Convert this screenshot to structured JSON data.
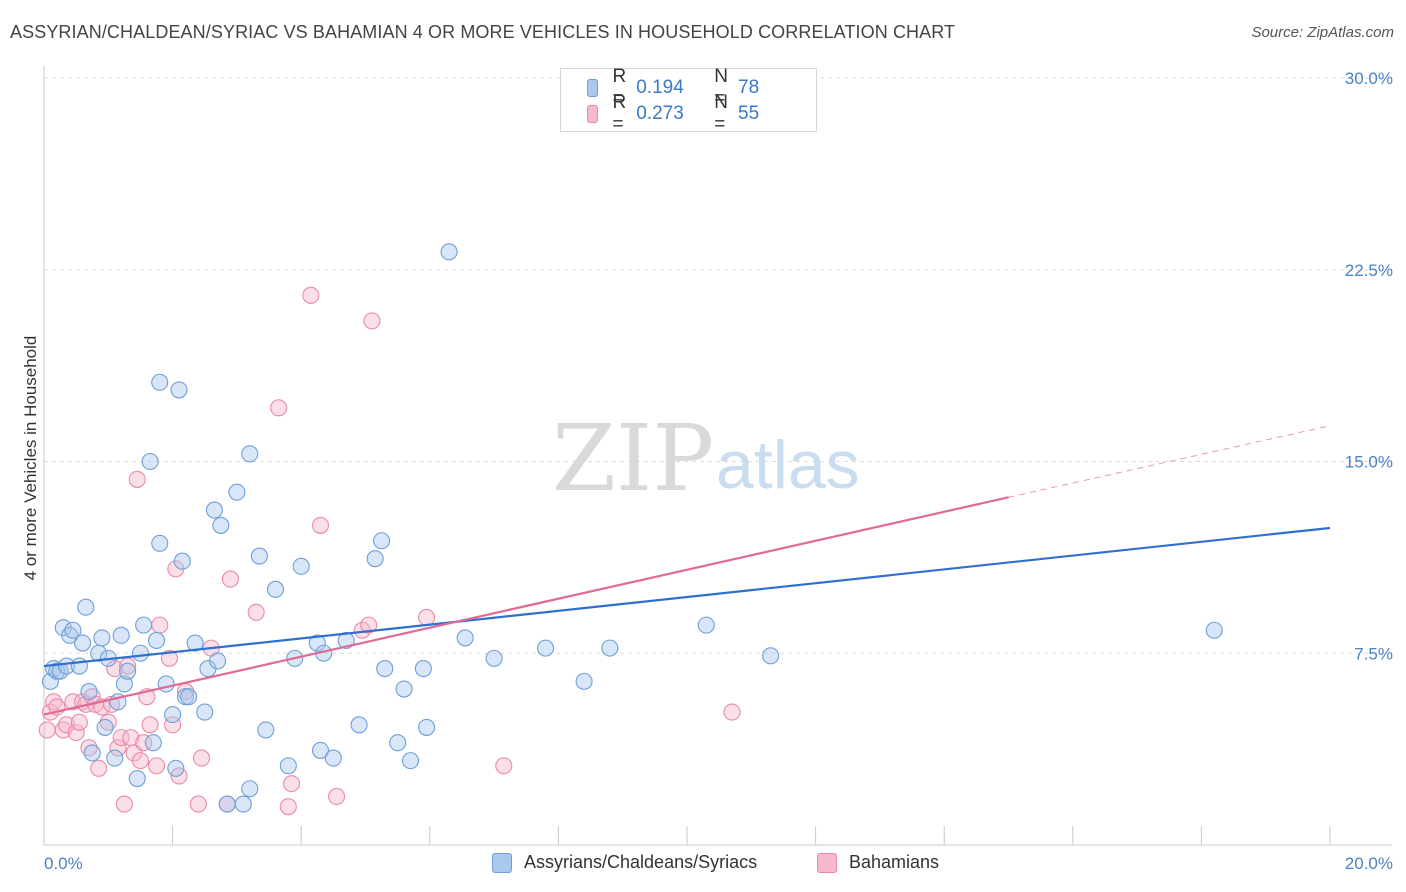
{
  "title": "ASSYRIAN/CHALDEAN/SYRIAC VS BAHAMIAN 4 OR MORE VEHICLES IN HOUSEHOLD CORRELATION CHART",
  "source": "Source: ZipAtlas.com",
  "watermark": {
    "zip": "ZIP",
    "atlas": "atlas"
  },
  "legend_top": [
    {
      "r_label": "R =",
      "r_value": "0.194",
      "n_label": "N =",
      "n_value": "78"
    },
    {
      "r_label": "R =",
      "r_value": "0.273",
      "n_label": "N =",
      "n_value": "55"
    }
  ],
  "legend_bottom": [
    {
      "label": "Assyrians/Chaldeans/Syriacs"
    },
    {
      "label": "Bahamians"
    }
  ],
  "chart_data": {
    "type": "scatter",
    "ylabel": "4 or more Vehicles in Household",
    "xlim": [
      0,
      20
    ],
    "ylim": [
      0,
      30
    ],
    "x_tick_labels": [
      "0.0%",
      "20.0%"
    ],
    "y_ticks": [
      7.5,
      15.0,
      22.5,
      30.0
    ],
    "y_tick_labels": [
      "7.5%",
      "15.0%",
      "22.5%",
      "30.0%"
    ],
    "grid": "horizontal dashed",
    "colors": {
      "blue_fill": "#a9c8ee",
      "blue_stroke": "#6f9fd8",
      "blue_line": "#2f6fce",
      "pink_fill": "#f6b8cb",
      "pink_stroke": "#e88aa6",
      "pink_line": "#e06a94"
    },
    "series": [
      {
        "name": "Assyrians/Chaldeans/Syriacs",
        "r": 0.194,
        "n": 78,
        "trend": {
          "x": [
            0,
            20
          ],
          "y": [
            7.0,
            12.4
          ]
        },
        "points": [
          [
            0.1,
            6.4
          ],
          [
            0.15,
            6.9
          ],
          [
            0.2,
            6.8
          ],
          [
            0.25,
            6.8
          ],
          [
            0.3,
            8.5
          ],
          [
            0.35,
            7.0
          ],
          [
            0.4,
            8.2
          ],
          [
            0.45,
            8.4
          ],
          [
            0.55,
            7.0
          ],
          [
            0.6,
            7.9
          ],
          [
            0.65,
            9.3
          ],
          [
            0.7,
            6.0
          ],
          [
            0.75,
            3.6
          ],
          [
            0.85,
            7.5
          ],
          [
            0.9,
            8.1
          ],
          [
            0.95,
            4.6
          ],
          [
            1.0,
            7.3
          ],
          [
            1.1,
            3.4
          ],
          [
            1.15,
            5.6
          ],
          [
            1.2,
            8.2
          ],
          [
            1.25,
            6.3
          ],
          [
            1.3,
            6.8
          ],
          [
            1.45,
            2.6
          ],
          [
            1.5,
            7.5
          ],
          [
            1.55,
            8.6
          ],
          [
            1.65,
            15.0
          ],
          [
            1.7,
            4.0
          ],
          [
            1.75,
            8.0
          ],
          [
            1.8,
            11.8
          ],
          [
            1.8,
            18.1
          ],
          [
            1.9,
            6.3
          ],
          [
            2.0,
            5.1
          ],
          [
            2.05,
            3.0
          ],
          [
            2.1,
            17.8
          ],
          [
            2.15,
            11.1
          ],
          [
            2.2,
            5.8
          ],
          [
            2.25,
            5.8
          ],
          [
            2.35,
            7.9
          ],
          [
            2.5,
            5.2
          ],
          [
            2.55,
            6.9
          ],
          [
            2.65,
            13.1
          ],
          [
            2.7,
            7.2
          ],
          [
            2.75,
            12.5
          ],
          [
            2.85,
            1.6
          ],
          [
            3.0,
            13.8
          ],
          [
            3.1,
            1.6
          ],
          [
            3.2,
            2.2
          ],
          [
            3.2,
            15.3
          ],
          [
            3.35,
            11.3
          ],
          [
            3.45,
            4.5
          ],
          [
            3.6,
            10.0
          ],
          [
            3.8,
            3.1
          ],
          [
            3.9,
            7.3
          ],
          [
            4.0,
            10.9
          ],
          [
            4.25,
            7.9
          ],
          [
            4.3,
            3.7
          ],
          [
            4.35,
            7.5
          ],
          [
            4.5,
            3.4
          ],
          [
            4.7,
            8.0
          ],
          [
            4.9,
            4.7
          ],
          [
            5.15,
            11.2
          ],
          [
            5.25,
            11.9
          ],
          [
            5.3,
            6.9
          ],
          [
            5.5,
            4.0
          ],
          [
            5.6,
            6.1
          ],
          [
            5.7,
            3.3
          ],
          [
            5.9,
            6.9
          ],
          [
            5.95,
            4.6
          ],
          [
            6.3,
            23.2
          ],
          [
            6.55,
            8.1
          ],
          [
            7.0,
            7.3
          ],
          [
            7.8,
            7.7
          ],
          [
            8.4,
            6.4
          ],
          [
            8.8,
            7.7
          ],
          [
            10.3,
            8.6
          ],
          [
            11.0,
            28.5
          ],
          [
            11.3,
            7.4
          ],
          [
            18.2,
            8.4
          ]
        ]
      },
      {
        "name": "Bahamians",
        "r": 0.273,
        "n": 55,
        "trend": {
          "x": [
            0,
            15
          ],
          "y": [
            5.1,
            13.6
          ]
        },
        "trend_dashed": {
          "x": [
            15,
            20
          ],
          "y": [
            13.6,
            16.4
          ]
        },
        "points": [
          [
            0.05,
            4.5
          ],
          [
            0.1,
            5.2
          ],
          [
            0.15,
            5.6
          ],
          [
            0.2,
            5.4
          ],
          [
            0.3,
            4.5
          ],
          [
            0.35,
            4.7
          ],
          [
            0.45,
            5.6
          ],
          [
            0.5,
            4.4
          ],
          [
            0.55,
            4.8
          ],
          [
            0.6,
            5.6
          ],
          [
            0.65,
            5.5
          ],
          [
            0.7,
            3.8
          ],
          [
            0.75,
            5.8
          ],
          [
            0.8,
            5.5
          ],
          [
            0.85,
            3.0
          ],
          [
            0.9,
            5.4
          ],
          [
            1.0,
            4.8
          ],
          [
            1.05,
            5.5
          ],
          [
            1.1,
            6.9
          ],
          [
            1.15,
            3.8
          ],
          [
            1.2,
            4.2
          ],
          [
            1.25,
            1.6
          ],
          [
            1.3,
            7.0
          ],
          [
            1.35,
            4.2
          ],
          [
            1.4,
            3.6
          ],
          [
            1.45,
            14.3
          ],
          [
            1.5,
            3.3
          ],
          [
            1.55,
            4.0
          ],
          [
            1.6,
            5.8
          ],
          [
            1.65,
            4.7
          ],
          [
            1.75,
            3.1
          ],
          [
            1.8,
            8.6
          ],
          [
            1.95,
            7.3
          ],
          [
            2.0,
            4.7
          ],
          [
            2.05,
            10.8
          ],
          [
            2.1,
            2.7
          ],
          [
            2.2,
            6.0
          ],
          [
            2.4,
            1.6
          ],
          [
            2.45,
            3.4
          ],
          [
            2.6,
            7.7
          ],
          [
            2.85,
            1.6
          ],
          [
            2.9,
            10.4
          ],
          [
            3.3,
            9.1
          ],
          [
            3.65,
            17.1
          ],
          [
            3.8,
            1.5
          ],
          [
            3.85,
            2.4
          ],
          [
            4.15,
            21.5
          ],
          [
            4.3,
            12.5
          ],
          [
            4.55,
            1.9
          ],
          [
            4.95,
            8.4
          ],
          [
            5.05,
            8.6
          ],
          [
            5.1,
            20.5
          ],
          [
            5.95,
            8.9
          ],
          [
            7.15,
            3.1
          ],
          [
            10.7,
            5.2
          ]
        ]
      }
    ]
  }
}
